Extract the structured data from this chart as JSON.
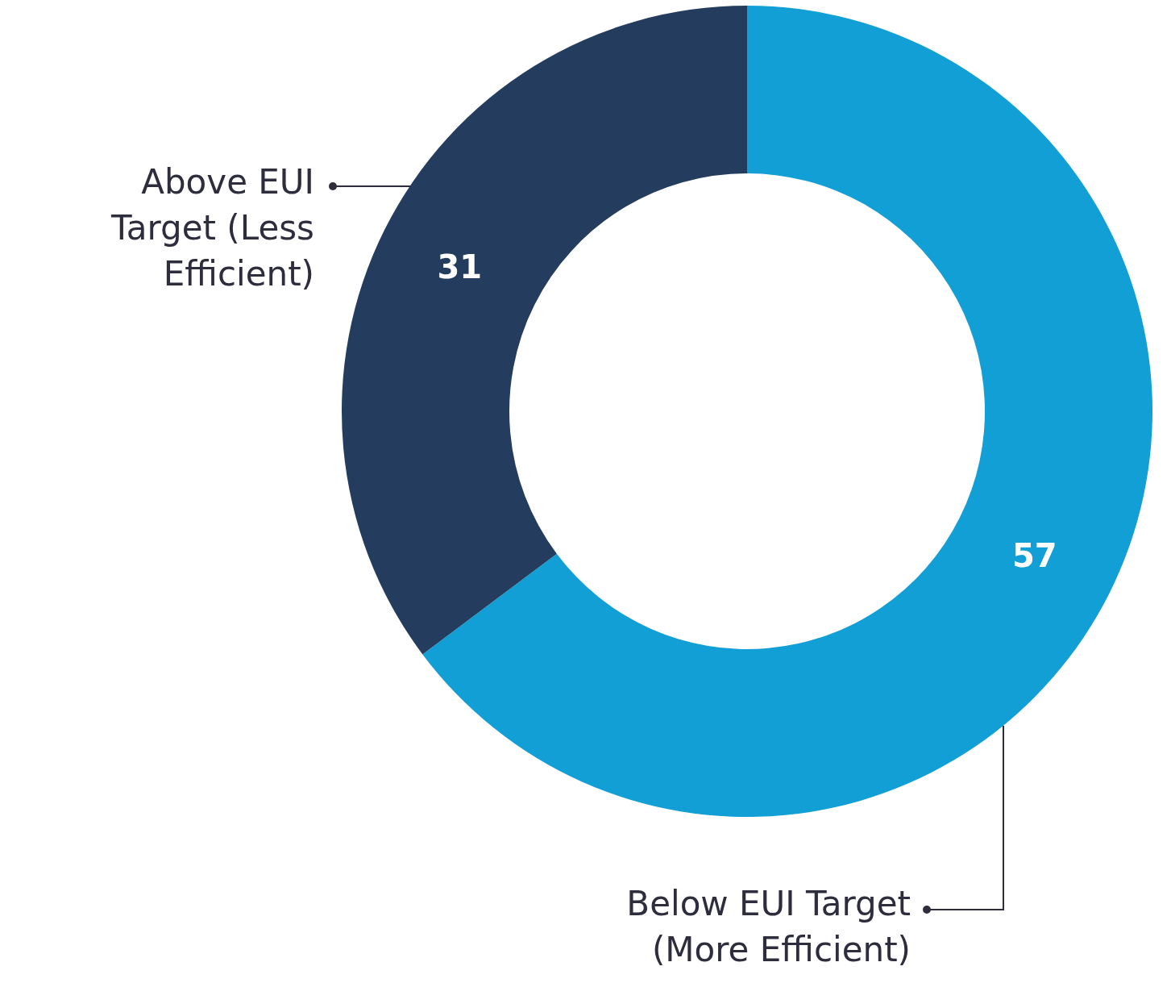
{
  "chart_data": {
    "type": "donut",
    "categories": [
      "Below EUI Target (More Efficient)",
      "Above EUI Target (Less Efficient)"
    ],
    "values": [
      57,
      31
    ],
    "colors": [
      "#129fd6",
      "#243d5e"
    ],
    "data_labels": true
  }
}
